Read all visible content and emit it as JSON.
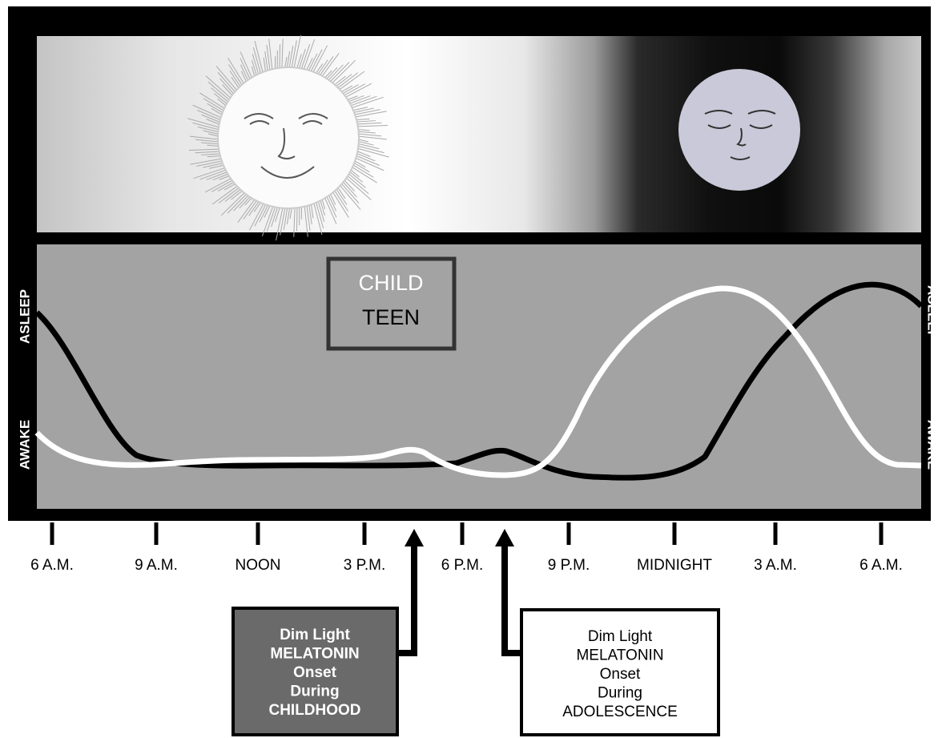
{
  "axis_labels": {
    "left": [
      "ASLEEP",
      "AWAKE"
    ],
    "right": [
      "ASLEEP",
      "AWAKE"
    ]
  },
  "legend": {
    "items": [
      "CHILD",
      "TEEN"
    ]
  },
  "time_labels": [
    "6 A.M.",
    "9 A.M.",
    "NOON",
    "3 P.M.",
    "6 P.M.",
    "9 P.M.",
    "MIDNIGHT",
    "3 A.M.",
    "6 A.M."
  ],
  "callouts": [
    {
      "lines": [
        "Dim Light",
        "MELATONIN",
        "Onset",
        "During",
        "CHILDHOOD"
      ]
    },
    {
      "lines": [
        "Dim Light",
        "MELATONIN",
        "Onset",
        "During",
        "ADOLESCENCE"
      ]
    }
  ]
}
